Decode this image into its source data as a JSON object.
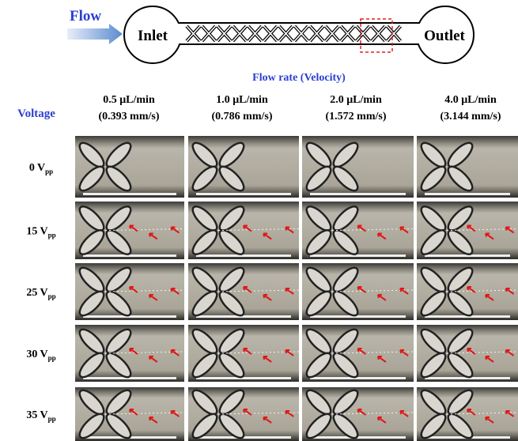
{
  "diagram": {
    "flow": "Flow",
    "inlet": "Inlet",
    "outlet": "Outlet"
  },
  "grid": {
    "title": "Flow rate (Velocity)",
    "row_header": "Voltage",
    "columns": [
      {
        "rate": "0.5 μL/min",
        "velocity": "(0.393 mm/s)"
      },
      {
        "rate": "1.0 μL/min",
        "velocity": "(0.786 mm/s)"
      },
      {
        "rate": "2.0 μL/min",
        "velocity": "(1.572 mm/s)"
      },
      {
        "rate": "4.0 μL/min",
        "velocity": "(3.144 mm/s)"
      }
    ],
    "rows": [
      {
        "voltage": "0 V",
        "sub": "pp"
      },
      {
        "voltage": "15 V",
        "sub": "pp"
      },
      {
        "voltage": "25 V",
        "sub": "pp"
      },
      {
        "voltage": "30 V",
        "sub": "pp"
      },
      {
        "voltage": "35 V",
        "sub": "pp"
      }
    ]
  }
}
